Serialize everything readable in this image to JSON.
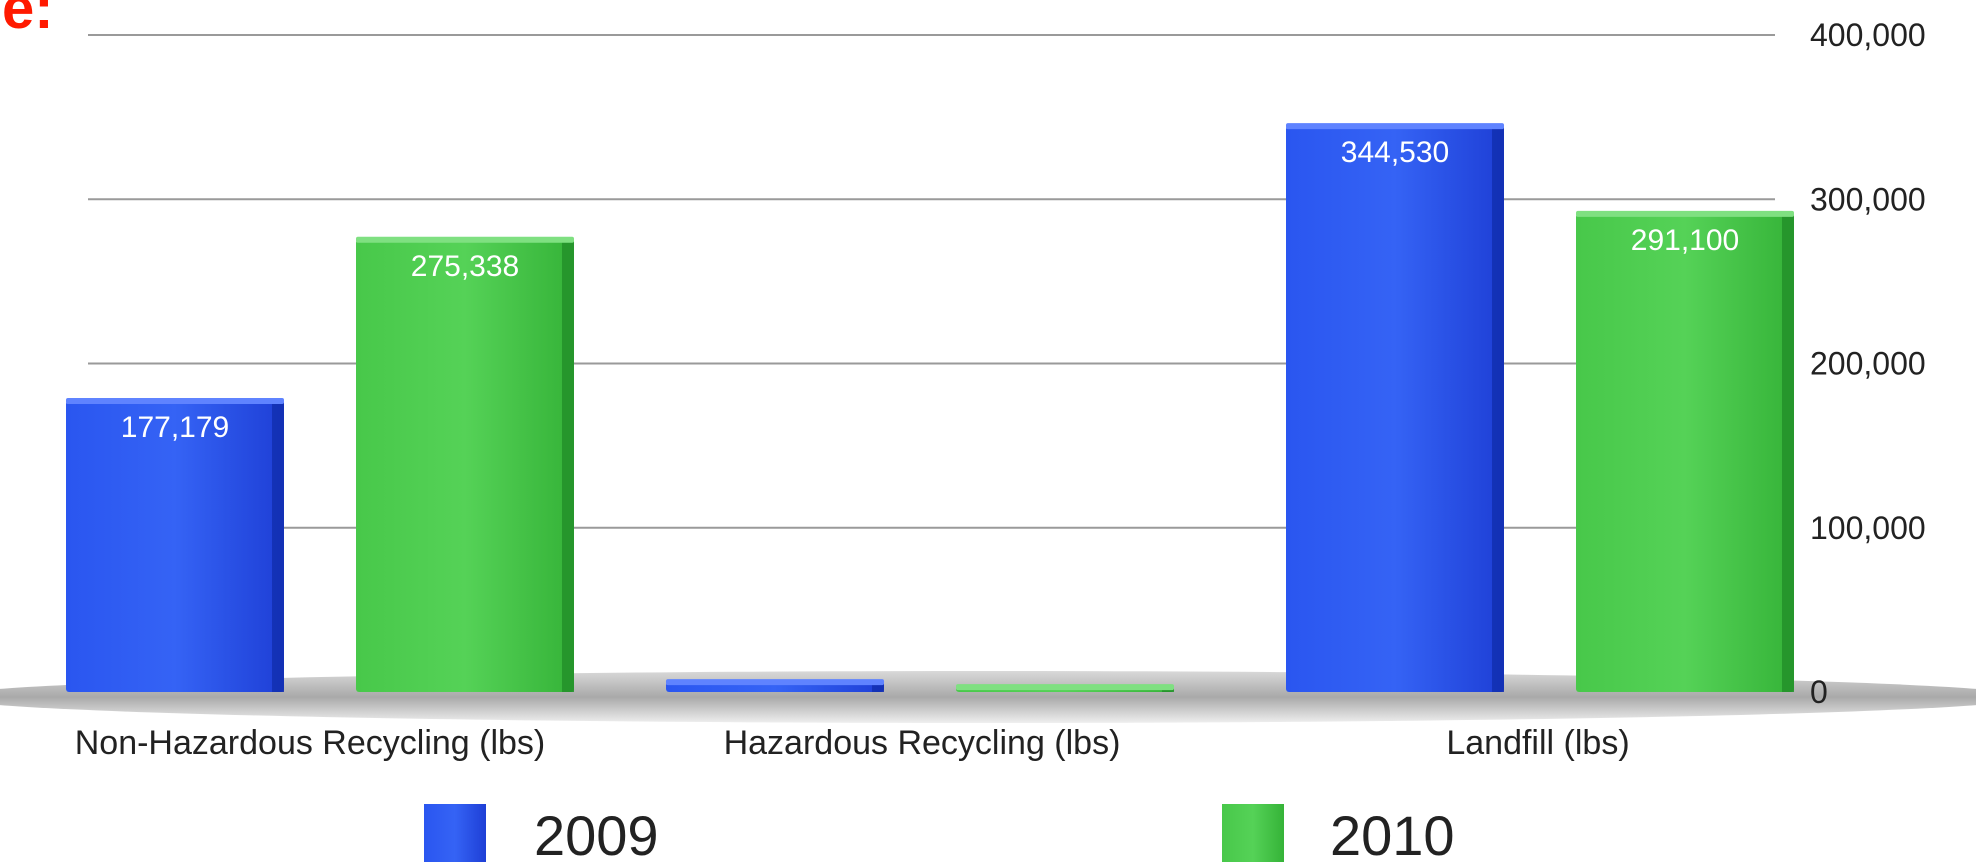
{
  "header": {
    "cropped_title_fragment": "e:"
  },
  "chart_data": {
    "type": "bar",
    "categories": [
      "Non-Hazardous Recycling (lbs)",
      "Hazardous Recycling (lbs)",
      "Landfill (lbs)"
    ],
    "series": [
      {
        "name": "2009",
        "color": "#1f3fe0",
        "values": [
          177179,
          6000,
          344530
        ],
        "labels": [
          "177,179",
          "",
          "344,530"
        ]
      },
      {
        "name": "2010",
        "color": "#2fb52f",
        "values": [
          275338,
          3000,
          291100
        ],
        "labels": [
          "275,338",
          "",
          "291,100"
        ]
      }
    ],
    "ylim": [
      0,
      400000
    ],
    "yticks": [
      0,
      100000,
      200000,
      300000,
      400000
    ],
    "ytick_labels": [
      "0",
      "100,000",
      "200,000",
      "300,000",
      "400,000"
    ],
    "y_axis_side": "right",
    "grid": true,
    "legend_position": "bottom"
  }
}
